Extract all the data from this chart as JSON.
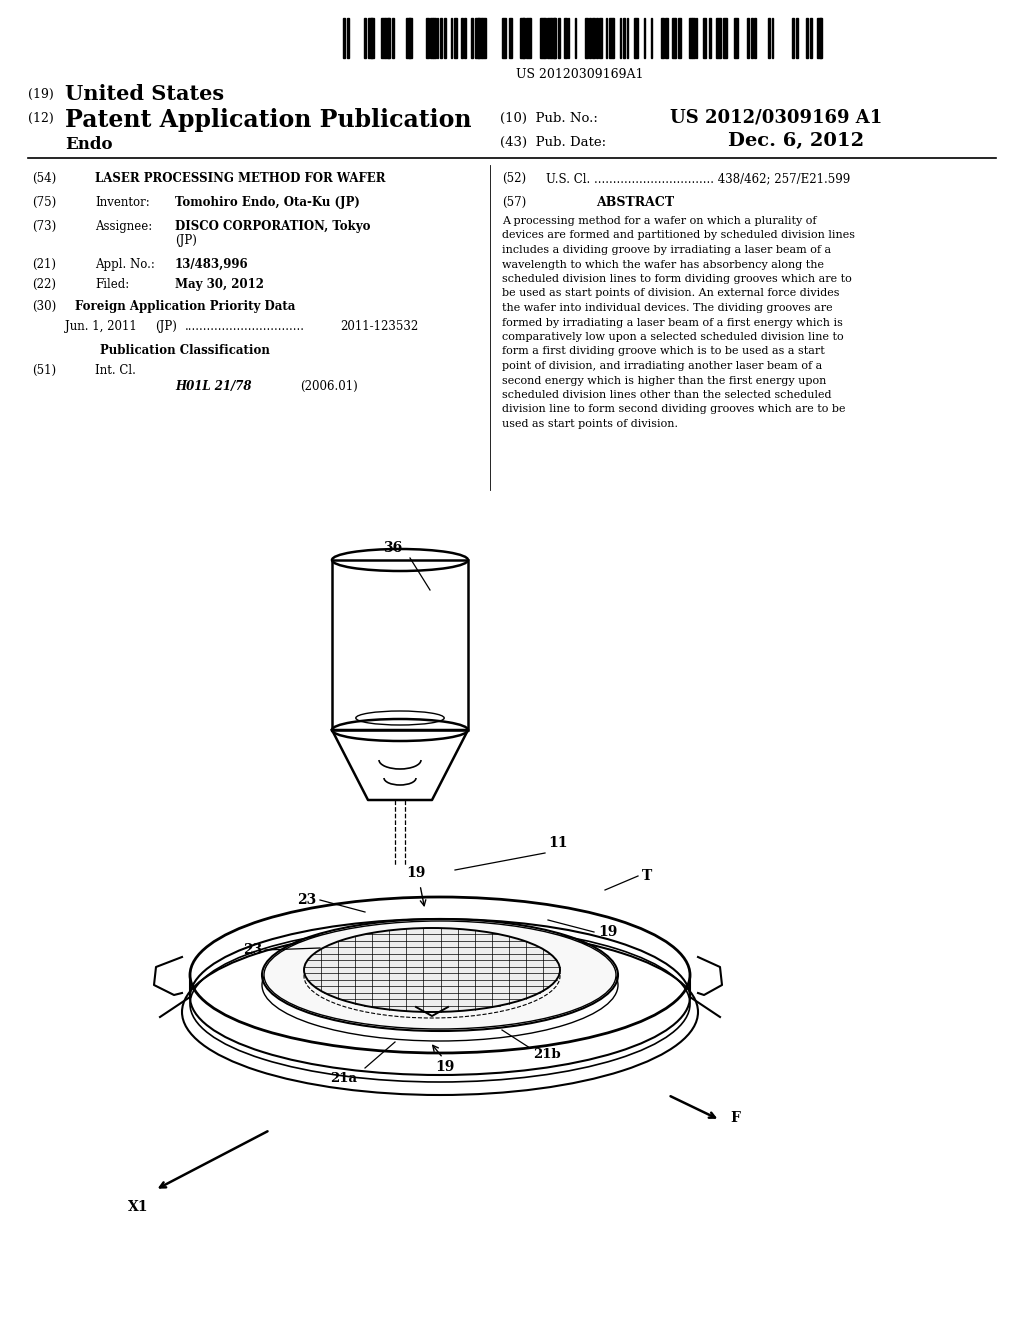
{
  "background_color": "#ffffff",
  "barcode_text": "US 20120309169A1",
  "header_19": "(19)",
  "header_19_text": "United States",
  "header_12": "(12)",
  "header_12_text": "Patent Application Publication",
  "inventor_name": "Endo",
  "pub_no_label": "(10)  Pub. No.:",
  "pub_no_value": "US 2012/0309169 A1",
  "pub_date_label": "(43)  Pub. Date:",
  "pub_date_value": "Dec. 6, 2012",
  "field_54_label": "(54)",
  "field_54_text": "LASER PROCESSING METHOD FOR WAFER",
  "field_52_label": "(52)",
  "field_52_text": "U.S. Cl. ................................ 438/462; 257/E21.599",
  "field_75_label": "(75)",
  "field_75_key": "Inventor:",
  "field_75_val": "Tomohiro Endo, Ota-Ku (JP)",
  "field_57_label": "(57)",
  "field_57_title": "ABSTRACT",
  "field_57_text": "A processing method for a wafer on which a plurality of devices are formed and partitioned by scheduled division lines includes a dividing groove by irradiating a laser beam of a wavelength to which the wafer has absorbency along the scheduled division lines to form dividing grooves which are to be used as start points of division. An external force divides the wafer into individual devices. The dividing grooves are formed by irradiating a laser beam of a first energy which is comparatively low upon a selected scheduled division line to form a first dividing groove which is to be used as a start point of division, and irradiating another laser beam of a second energy which is higher than the first energy upon scheduled division lines other than the selected scheduled division line to form second dividing grooves which are to be used as start points of division.",
  "field_73_label": "(73)",
  "field_73_key": "Assignee:",
  "field_73_val1": "DISCO CORPORATION, Tokyo",
  "field_73_val2": "(JP)",
  "field_21_label": "(21)",
  "field_21_key": "Appl. No.:",
  "field_21_val": "13/483,996",
  "field_22_label": "(22)",
  "field_22_key": "Filed:",
  "field_22_val": "May 30, 2012",
  "field_30_label": "(30)",
  "field_30_text": "Foreign Application Priority Data",
  "field_30_date": "Jun. 1, 2011",
  "field_30_country": "(JP)",
  "field_30_dots": "................................",
  "field_30_app": "2011-123532",
  "pub_class_title": "Publication Classification",
  "field_51_label": "(51)",
  "field_51_key": "Int. Cl.",
  "field_51_val1": "H01L 21/78",
  "field_51_val2": "(2006.01)"
}
